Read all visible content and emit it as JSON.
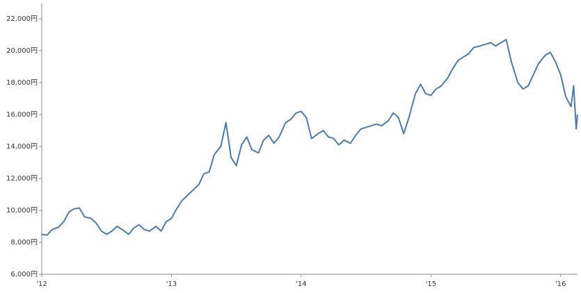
{
  "chart_data": {
    "type": "line",
    "color": "#4a7ab0",
    "x": [
      2012.0,
      2012.04,
      2012.08,
      2012.13,
      2012.17,
      2012.21,
      2012.25,
      2012.29,
      2012.33,
      2012.38,
      2012.42,
      2012.46,
      2012.5,
      2012.54,
      2012.58,
      2012.62,
      2012.67,
      2012.71,
      2012.75,
      2012.79,
      2012.83,
      2012.88,
      2012.92,
      2012.96,
      2013.0,
      2013.04,
      2013.08,
      2013.13,
      2013.17,
      2013.21,
      2013.25,
      2013.29,
      2013.33,
      2013.38,
      2013.42,
      2013.46,
      2013.5,
      2013.54,
      2013.58,
      2013.62,
      2013.67,
      2013.71,
      2013.75,
      2013.79,
      2013.83,
      2013.88,
      2013.92,
      2013.96,
      2014.0,
      2014.04,
      2014.08,
      2014.13,
      2014.17,
      2014.21,
      2014.25,
      2014.29,
      2014.33,
      2014.38,
      2014.42,
      2014.46,
      2014.5,
      2014.54,
      2014.58,
      2014.62,
      2014.67,
      2014.71,
      2014.75,
      2014.79,
      2014.83,
      2014.88,
      2014.92,
      2014.96,
      2015.0,
      2015.04,
      2015.08,
      2015.13,
      2015.17,
      2015.21,
      2015.25,
      2015.29,
      2015.33,
      2015.38,
      2015.42,
      2015.46,
      2015.5,
      2015.54,
      2015.58,
      2015.62,
      2015.67,
      2015.71,
      2015.75,
      2015.79,
      2015.83,
      2015.88,
      2015.92,
      2015.96,
      2016.0,
      2016.04,
      2016.08,
      2016.1,
      2016.12,
      2016.13
    ],
    "values": [
      8500,
      8450,
      8800,
      8950,
      9300,
      9900,
      10100,
      10150,
      9600,
      9500,
      9200,
      8700,
      8500,
      8700,
      9000,
      8800,
      8500,
      8900,
      9100,
      8800,
      8700,
      9000,
      8700,
      9300,
      9500,
      10100,
      10600,
      11000,
      11300,
      11600,
      12300,
      12400,
      13500,
      14000,
      15500,
      13300,
      12800,
      14100,
      14600,
      13800,
      13600,
      14400,
      14700,
      14200,
      14600,
      15500,
      15700,
      16100,
      16200,
      15800,
      14500,
      14800,
      15000,
      14600,
      14500,
      14100,
      14400,
      14200,
      14700,
      15100,
      15200,
      15300,
      15400,
      15300,
      15600,
      16100,
      15800,
      14800,
      15800,
      17300,
      17900,
      17300,
      17200,
      17600,
      17800,
      18300,
      18900,
      19400,
      19600,
      19800,
      20200,
      20300,
      20400,
      20500,
      20300,
      20500,
      20700,
      19300,
      18000,
      17600,
      17800,
      18500,
      19200,
      19700,
      19900,
      19300,
      18500,
      17100,
      16500,
      17800,
      15100,
      16000
    ],
    "xlim": [
      2012,
      2016.13
    ],
    "xticks": [
      {
        "value": 2012,
        "label": "'12"
      },
      {
        "value": 2013,
        "label": "'13"
      },
      {
        "value": 2014,
        "label": "'14"
      },
      {
        "value": 2015,
        "label": "'15"
      },
      {
        "value": 2016,
        "label": "'16"
      }
    ],
    "ylim": [
      6000,
      22000
    ],
    "yticks": [
      {
        "value": 6000,
        "label": "6,000円"
      },
      {
        "value": 8000,
        "label": "8,000円"
      },
      {
        "value": 10000,
        "label": "10,000円"
      },
      {
        "value": 12000,
        "label": "12,000円"
      },
      {
        "value": 14000,
        "label": "14,000円"
      },
      {
        "value": 16000,
        "label": "16,000円"
      },
      {
        "value": 18000,
        "label": "18,000円"
      },
      {
        "value": 20000,
        "label": "20,000円"
      },
      {
        "value": 22000,
        "label": "22,000円"
      }
    ]
  }
}
